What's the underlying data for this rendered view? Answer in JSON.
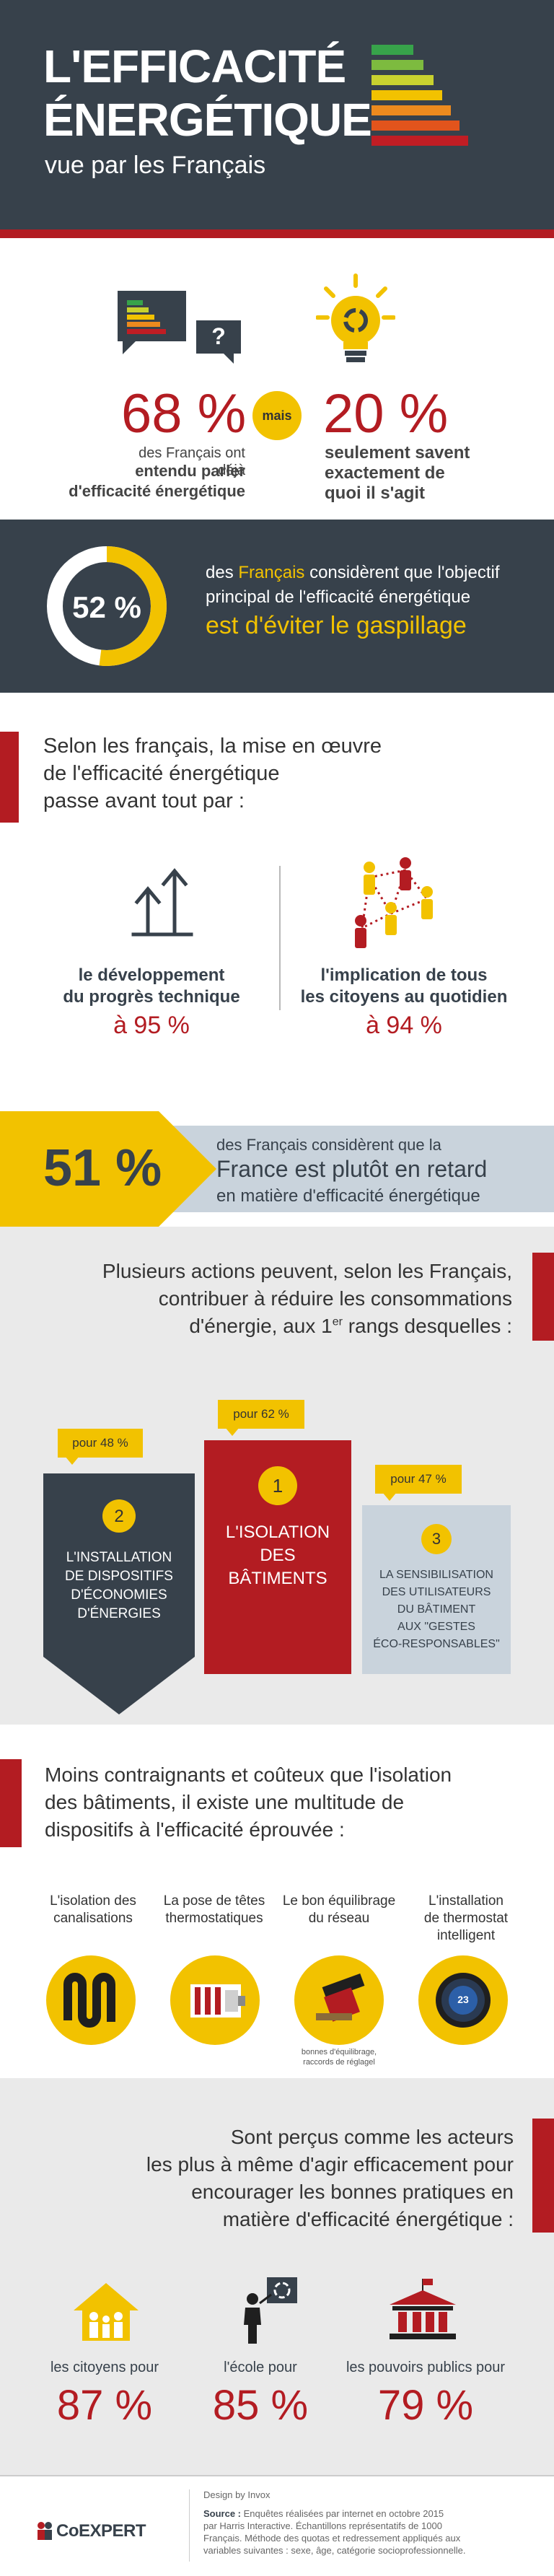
{
  "header": {
    "title_line1": "L'EFFICACITÉ",
    "title_line2": "ÉNERGÉTIQUE",
    "subtitle": "vue par les Français"
  },
  "awareness": {
    "left_pct": "68 %",
    "left_text1": "des Français ont déjà",
    "left_text2": "entendu parler",
    "left_text3": "d'efficacité énergétique",
    "connector": "mais",
    "right_pct": "20 %",
    "right_text1": "seulement savent",
    "right_text2": "exactement de",
    "right_text3": "quoi il s'agit",
    "question_mark": "?"
  },
  "objective": {
    "pct": "52 %",
    "pct_value": 52,
    "line1_pre": "des ",
    "line1_hl": "Français",
    "line1_post": " considèrent que l'objectif",
    "line2": "principal de l'efficacité énergétique",
    "line3": "est d'éviter le gaspillage"
  },
  "means": {
    "heading1": "Selon les français, la mise en œuvre",
    "heading2": "de l'efficacité énergétique",
    "heading3": "passe avant tout par :",
    "left_label1": "le développement",
    "left_label2": "du progrès technique",
    "left_pct": "à 95 %",
    "right_label1": "l'implication de tous",
    "right_label2": "les citoyens au quotidien",
    "right_pct": "à 94 %"
  },
  "delay": {
    "pct": "51 %",
    "line1": "des Français considèrent que la",
    "line2": "France est plutôt en retard",
    "line3": "en matière d'efficacité énergétique"
  },
  "actions": {
    "heading1": "Plusieurs actions peuvent, selon les Français,",
    "heading2": "contribuer à réduire les consommations",
    "heading3_pre": "d'énergie, aux 1",
    "heading3_sup": "er",
    "heading3_post": " rangs desquelles :",
    "items": [
      {
        "rank": "2",
        "tag": "pour 48 %",
        "l1": "L'INSTALLATION",
        "l2": "DE DISPOSITIFS",
        "l3": "D'ÉCONOMIES",
        "l4": "D'ÉNERGIES"
      },
      {
        "rank": "1",
        "tag": "pour 62 %",
        "l1": "L'ISOLATION",
        "l2": "DES",
        "l3": "BÂTIMENTS"
      },
      {
        "rank": "3",
        "tag": "pour 47 %",
        "l1": "LA SENSIBILISATION",
        "l2": "DES UTILISATEURS",
        "l3": "DU BÂTIMENT",
        "l4": "AUX \"GESTES",
        "l5": "ÉCO-RESPONSABLES\""
      }
    ]
  },
  "devices": {
    "heading1": "Moins contraignants et coûteux que l'isolation",
    "heading2": "des bâtiments, il existe une multitude de",
    "heading3": "dispositifs à l'efficacité éprouvée :",
    "items": [
      {
        "l1": "L'isolation des",
        "l2": "canalisations"
      },
      {
        "l1": "La pose de têtes",
        "l2": "thermostatiques"
      },
      {
        "l1": "Le bon équilibrage",
        "l2": "du réseau"
      },
      {
        "l1": "L'installation",
        "l2": "de thermostat",
        "l3": "intelligent"
      }
    ],
    "caption1": "bonnes d'équilibrage,",
    "caption2": "raccords de réglagel",
    "thermostat_value": "23"
  },
  "actors": {
    "heading1": "Sont perçus comme les acteurs",
    "heading2": "les plus à même d'agir efficacement pour",
    "heading3": "encourager les bonnes pratiques en",
    "heading4": "matière d'efficacité énergétique :",
    "items": [
      {
        "label": "les citoyens pour",
        "pct": "87 %"
      },
      {
        "label": "l'école pour",
        "pct": "85 %"
      },
      {
        "label": "les pouvoirs publics pour",
        "pct": "79 %"
      }
    ]
  },
  "footer": {
    "logo": "CoEXPERT",
    "design": "Design by Invox",
    "source_label": "Source :",
    "source1": " Enquêtes réalisées par internet en octobre 2015",
    "source2": "par Harris Interactive. Échantillons représentatifs de 1000",
    "source3": "Français. Méthode des quotas et redressement appliqués aux",
    "source4": "variables suivantes : sexe, âge, catégorie socioprofessionnelle."
  },
  "colors": {
    "dark": "#37414b",
    "red": "#b31c22",
    "yellow": "#f2c200",
    "light_gray": "#eaeaea",
    "blue_gray": "#c9d3dc"
  }
}
